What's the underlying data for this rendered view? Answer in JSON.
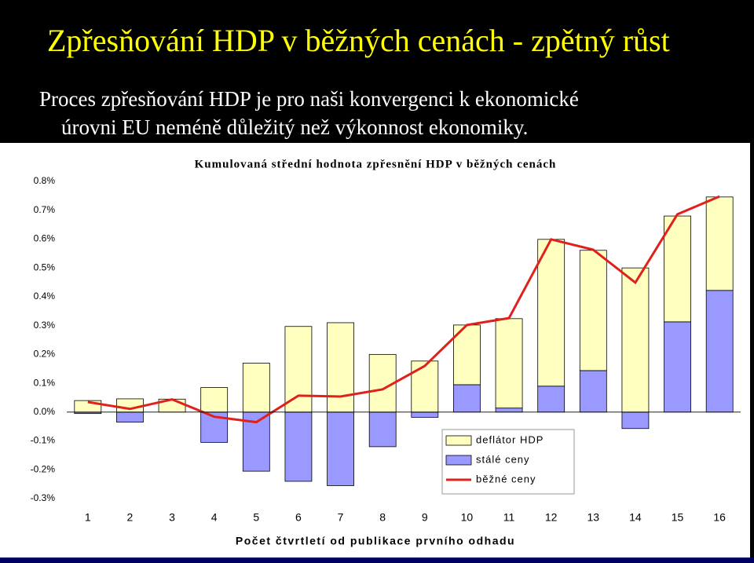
{
  "slide": {
    "title": "Zpřesňování HDP v běžných cenách - zpětný růst",
    "text_lines": [
      "Proces zpřesňování HDP je pro naši konvergenci k ekonomické",
      "úrovni EU neméně důležitý než výkonnost ekonomiky."
    ]
  },
  "chart_data": {
    "type": "bar",
    "stacked": true,
    "title": "Kumulovaná střední hodnota zpřesnění HDP v běžných cenách",
    "x_label": "Počet čtvrtletí od publikace prvního odhadu",
    "categories": [
      "1",
      "2",
      "3",
      "4",
      "5",
      "6",
      "7",
      "8",
      "9",
      "10",
      "11",
      "12",
      "13",
      "14",
      "15",
      "16"
    ],
    "series": [
      {
        "name": "deflátor HDP",
        "type": "bar",
        "color": "#ffffc0",
        "values": [
          0.04,
          0.046,
          0.045,
          0.085,
          0.17,
          0.297,
          0.31,
          0.2,
          0.177,
          0.207,
          0.31,
          0.509,
          0.417,
          0.5,
          0.367,
          0.324
        ]
      },
      {
        "name": "stálé ceny",
        "type": "bar",
        "color": "#9999ff",
        "values": [
          -0.005,
          -0.035,
          0,
          -0.105,
          -0.205,
          -0.24,
          -0.255,
          -0.12,
          -0.018,
          0.095,
          0.014,
          0.09,
          0.144,
          -0.057,
          0.313,
          0.422
        ]
      },
      {
        "name": "běžné ceny",
        "type": "line",
        "color": "#e0201b",
        "values": [
          0.035,
          0.011,
          0.044,
          -0.016,
          -0.035,
          0.057,
          0.054,
          0.079,
          0.16,
          0.302,
          0.326,
          0.599,
          0.563,
          0.449,
          0.686,
          0.748
        ]
      }
    ],
    "ylim": [
      -0.3,
      0.8
    ],
    "yticks": [
      {
        "value": -0.3,
        "label": "-0.3%"
      },
      {
        "value": -0.2,
        "label": "-0.2%"
      },
      {
        "value": -0.1,
        "label": "-0.1%"
      },
      {
        "value": 0,
        "label": "0.0%"
      },
      {
        "value": 0.1,
        "label": "0.1%"
      },
      {
        "value": 0.2,
        "label": "0.2%"
      },
      {
        "value": 0.3,
        "label": "0.3%"
      },
      {
        "value": 0.4,
        "label": "0.4%"
      },
      {
        "value": 0.5,
        "label": "0.5%"
      },
      {
        "value": 0.6,
        "label": "0.6%"
      },
      {
        "value": 0.7,
        "label": "0.7%"
      },
      {
        "value": 0.8,
        "label": "0.8%"
      }
    ]
  }
}
